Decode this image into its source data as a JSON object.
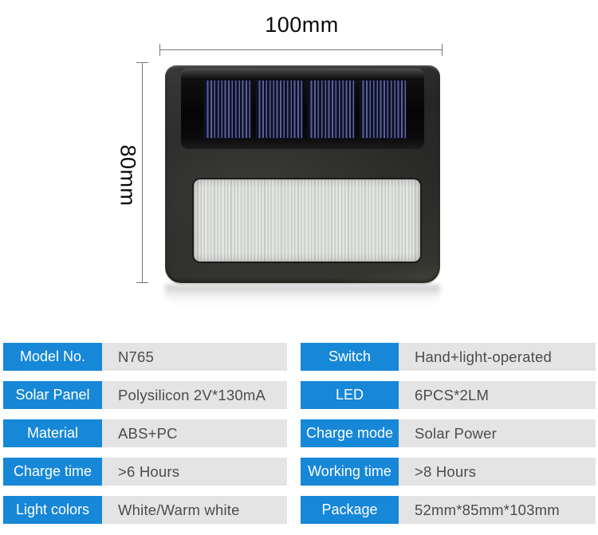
{
  "dimensions": {
    "width_label": "100mm",
    "height_label": "80mm"
  },
  "product": {
    "solar_cell_count": 4
  },
  "specs": {
    "left": [
      {
        "label": "Model No.",
        "value": "N765"
      },
      {
        "label": "Solar Panel",
        "value": "Polysilicon 2V*130mA"
      },
      {
        "label": "Material",
        "value": "ABS+PC"
      },
      {
        "label": "Charge time",
        "value": ">6 Hours"
      },
      {
        "label": "Light colors",
        "value": "White/Warm white"
      }
    ],
    "right": [
      {
        "label": "Switch",
        "value": "Hand+light-operated"
      },
      {
        "label": "LED",
        "value": "6PCS*2LM"
      },
      {
        "label": "Charge mode",
        "value": "Solar Power"
      },
      {
        "label": "Working time",
        "value": ">8 Hours"
      },
      {
        "label": "Package",
        "value": "52mm*85mm*103mm"
      }
    ]
  },
  "colors": {
    "accent_blue": "#1787d8",
    "value_cell_gray": "#e4e4e4",
    "value_text": "#4c4c4c",
    "solar_cell_navy": "#0e1026",
    "solar_cell_stripe": "#5a6298",
    "body_charcoal": "#2b2b29"
  }
}
